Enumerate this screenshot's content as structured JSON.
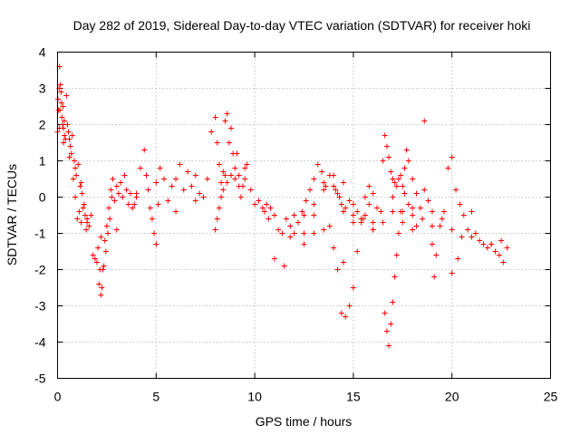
{
  "chart_data": {
    "type": "scatter",
    "title": "Day 282 of 2019, Sidereal Day-to-day VTEC variation (SDTVAR) for receiver hoki",
    "xlabel": "GPS time / hours",
    "ylabel": "SDTVAR / TECUs",
    "xlim": [
      0,
      25
    ],
    "ylim": [
      -5,
      4
    ],
    "x_ticks": [
      0,
      5,
      10,
      15,
      20,
      25
    ],
    "y_ticks": [
      -5,
      -4,
      -3,
      -2,
      -1,
      0,
      1,
      2,
      3,
      4
    ],
    "x_tick_labels": [
      "0",
      "5",
      "10",
      "15",
      "20",
      "25"
    ],
    "y_tick_labels": [
      "-5",
      "-4",
      "-3",
      "-2",
      "-1",
      "0",
      "1",
      "2",
      "3",
      "4"
    ],
    "grid": true,
    "marker": "+",
    "series": [
      {
        "name": "SDTVAR",
        "color": "#ff0000",
        "x": [
          0.0,
          0.05,
          0.1,
          0.15,
          0.2,
          0.25,
          0.3,
          0.35,
          0.4,
          0.5,
          0.6,
          0.7,
          0.8,
          0.9,
          1.0,
          1.1,
          1.2,
          1.3,
          1.4,
          1.5,
          1.6,
          1.7,
          1.8,
          1.9,
          2.0,
          2.1,
          2.2,
          2.3,
          2.4,
          2.5,
          2.6,
          2.7,
          2.8,
          2.9,
          3.0,
          3.1,
          3.2,
          3.3,
          3.4,
          3.5,
          3.6,
          3.7,
          3.8,
          3.9,
          4.0,
          4.2,
          4.4,
          4.5,
          4.6,
          4.7,
          4.8,
          4.9,
          5.0,
          5.1,
          5.2,
          5.4,
          5.6,
          5.8,
          6.0,
          6.2,
          6.4,
          6.6,
          6.8,
          7.0,
          7.2,
          7.4,
          7.6,
          7.8,
          8.0,
          8.1,
          8.2,
          8.3,
          8.4,
          8.5,
          8.6,
          8.7,
          8.8,
          8.9,
          9.0,
          9.1,
          9.2,
          9.3,
          9.4,
          9.5,
          9.6,
          9.8,
          10.0,
          10.2,
          10.4,
          10.5,
          10.6,
          10.7,
          10.8,
          11.0,
          11.2,
          11.4,
          11.6,
          11.8,
          12.0,
          12.2,
          12.4,
          12.6,
          12.8,
          13.0,
          13.2,
          13.4,
          13.6,
          13.8,
          14.0,
          14.1,
          14.2,
          14.3,
          14.4,
          14.5,
          14.6,
          14.8,
          15.0,
          15.2,
          15.4,
          15.6,
          15.8,
          16.0,
          16.2,
          16.4,
          16.5,
          16.6,
          16.7,
          16.8,
          16.9,
          17.0,
          17.1,
          17.2,
          17.3,
          17.4,
          17.6,
          17.8,
          18.0,
          18.2,
          18.4,
          18.6,
          18.8,
          19.0,
          19.2,
          19.4,
          19.6,
          19.8,
          20.0,
          20.2,
          20.4,
          20.6,
          20.8,
          21.0,
          21.2,
          21.4,
          21.6,
          21.8,
          22.0,
          22.2,
          22.4,
          22.6,
          22.8,
          0.1,
          0.3,
          0.6,
          0.9,
          1.2,
          1.5,
          2.2,
          3.0,
          4.0,
          5.0,
          6.0,
          7.0,
          8.5,
          9.5,
          11.8,
          12.5,
          13.0,
          13.5,
          14.5,
          15.0,
          16.0,
          17.0,
          17.5,
          18.0,
          19.0,
          20.0,
          20.5,
          21.0,
          22.0,
          22.5,
          0.02,
          0.08,
          0.12,
          0.18,
          0.22,
          0.28,
          0.34,
          0.45,
          0.55,
          0.65,
          0.75,
          0.85,
          0.95,
          1.05,
          1.15,
          1.25,
          1.35,
          1.45,
          2.05,
          2.15,
          2.25,
          2.35,
          2.45,
          2.55,
          2.65,
          2.75,
          12.5,
          13.0,
          13.5,
          13.8,
          14.0,
          14.2,
          14.4,
          14.6,
          14.8,
          15.0,
          15.2,
          15.4,
          15.6,
          15.8,
          16.0,
          11.0,
          11.5,
          12.0,
          12.5,
          13.0,
          13.5,
          14.0,
          14.5,
          15.0,
          15.5,
          16.0,
          16.5,
          17.0,
          17.5,
          18.0,
          18.5,
          19.0,
          19.5,
          16.6,
          16.7,
          16.8,
          16.9,
          17.0,
          17.1,
          17.2,
          17.3,
          17.4,
          17.5,
          17.6,
          17.7,
          17.8,
          18.0,
          18.2,
          8.0,
          8.1,
          8.2,
          8.3,
          8.4,
          8.6,
          8.8,
          9.0,
          9.2,
          18.6,
          19.1,
          20.0,
          20.3
        ],
        "y": [
          1.8,
          2.4,
          3.6,
          3.1,
          2.6,
          2.0,
          1.9,
          1.7,
          1.6,
          2.0,
          1.6,
          1.2,
          0.5,
          0.0,
          -0.6,
          -0.4,
          -0.7,
          -0.3,
          -0.5,
          -0.6,
          -0.8,
          -0.5,
          -1.6,
          -1.7,
          -1.8,
          -2.4,
          -2.7,
          -2.0,
          -1.2,
          -0.8,
          -0.3,
          0.2,
          0.5,
          -0.1,
          0.3,
          0.1,
          0.4,
          0.0,
          0.6,
          0.2,
          -0.2,
          0.1,
          -0.3,
          -0.2,
          0.0,
          0.8,
          1.3,
          0.6,
          0.2,
          -0.3,
          -0.6,
          -1.0,
          -1.3,
          -0.2,
          0.8,
          0.5,
          -0.1,
          0.3,
          0.5,
          0.9,
          0.2,
          0.7,
          0.3,
          0.6,
          0.1,
          0.0,
          0.5,
          1.8,
          2.2,
          1.5,
          0.9,
          0.4,
          0.7,
          2.1,
          2.3,
          1.5,
          1.9,
          1.2,
          0.8,
          1.2,
          0.6,
          0.0,
          0.3,
          0.5,
          0.9,
          0.2,
          -0.2,
          -0.1,
          -0.3,
          -0.4,
          -0.2,
          -0.6,
          -0.3,
          -0.5,
          -0.9,
          -1.0,
          -0.6,
          -0.8,
          -0.5,
          -0.7,
          -0.4,
          -0.1,
          0.2,
          0.5,
          0.9,
          0.7,
          0.3,
          0.6,
          0.3,
          0.2,
          0.1,
          0.0,
          -0.2,
          -0.4,
          -0.3,
          -0.1,
          -0.5,
          -0.4,
          -0.6,
          -0.5,
          -0.2,
          -0.7,
          -0.3,
          -0.4,
          1.0,
          1.7,
          1.4,
          1.1,
          0.7,
          0.5,
          0.4,
          0.3,
          0.5,
          0.6,
          0.1,
          -0.2,
          -0.5,
          -0.8,
          -0.3,
          0.2,
          -0.1,
          -1.3,
          -1.6,
          -0.8,
          -0.4,
          0.8,
          1.1,
          0.2,
          -0.2,
          -0.5,
          -0.9,
          -1.1,
          -1.0,
          -1.2,
          -1.3,
          -1.4,
          -1.3,
          -1.5,
          -1.6,
          -1.8,
          -1.4,
          1.9,
          1.5,
          1.1,
          0.8,
          0.4,
          -0.7,
          -1.1,
          -0.9,
          0.1,
          0.4,
          -0.4,
          -0.1,
          0.6,
          0.8,
          -1.1,
          -1.3,
          -1.0,
          -0.9,
          -1.8,
          -0.7,
          -0.9,
          0.0,
          -0.4,
          -0.3,
          -0.8,
          -0.9,
          -1.1,
          -0.4,
          -1.3,
          -1.2,
          2.7,
          3.0,
          2.4,
          2.9,
          2.2,
          2.5,
          2.1,
          2.8,
          1.8,
          1.4,
          1.7,
          1.0,
          0.6,
          0.9,
          0.3,
          0.1,
          -0.2,
          -0.9,
          -1.4,
          -2.0,
          -2.5,
          -1.9,
          -1.5,
          -1.0,
          -0.6,
          0.0,
          -1.0,
          -0.5,
          0.2,
          -0.8,
          -1.4,
          -2.0,
          -3.2,
          -3.3,
          -3.0,
          -2.5,
          -1.5,
          -0.7,
          0.0,
          0.3,
          0.1,
          -1.7,
          -1.9,
          -1.0,
          -0.5,
          -0.2,
          0.4,
          0.6,
          0.4,
          -0.2,
          -0.6,
          -0.9,
          -0.7,
          -0.4,
          -0.7,
          -0.9,
          -0.6,
          -0.4,
          -0.6,
          -3.2,
          -3.7,
          -4.1,
          -3.5,
          -2.9,
          -2.2,
          -1.6,
          -1.0,
          -0.4,
          0.3,
          0.8,
          1.3,
          1.0,
          0.5,
          0.1,
          -0.9,
          -0.6,
          -0.3,
          0.0,
          0.2,
          0.4,
          0.6,
          0.5,
          0.3,
          2.1,
          -2.2,
          -2.1,
          -1.7
        ]
      }
    ]
  }
}
